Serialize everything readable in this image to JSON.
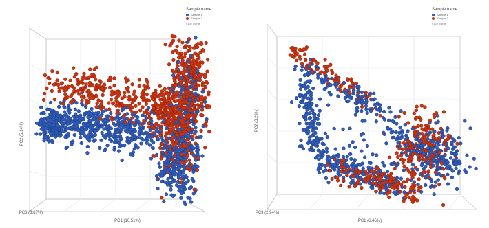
{
  "chart_data": [
    {
      "type": "scatter",
      "view": "3d",
      "legend": {
        "title": "Sample name",
        "items": [
          "Sample 1",
          "Sample 2"
        ],
        "note": "9132 points"
      },
      "axes": {
        "x": "PC1 (10.51%)",
        "y": "PC2 (5.14%)",
        "z": "PC3 (3.67%)"
      },
      "series": [
        {
          "name": "Sample 1",
          "color": "#2f5cb8"
        },
        {
          "name": "Sample 2",
          "color": "#cc3311"
        }
      ]
    },
    {
      "type": "scatter",
      "view": "3d",
      "legend": {
        "title": "Sample name",
        "items": [
          "Sample 1",
          "Sample 2"
        ],
        "note": "9132 points"
      },
      "axes": {
        "x": "PC1 (6.46%)",
        "y": "PC2 (3.29%)",
        "z": "PC3 (2.94%)"
      },
      "series": [
        {
          "name": "Sample 1",
          "color": "#2f5cb8"
        },
        {
          "name": "Sample 2",
          "color": "#cc3311"
        }
      ]
    }
  ]
}
